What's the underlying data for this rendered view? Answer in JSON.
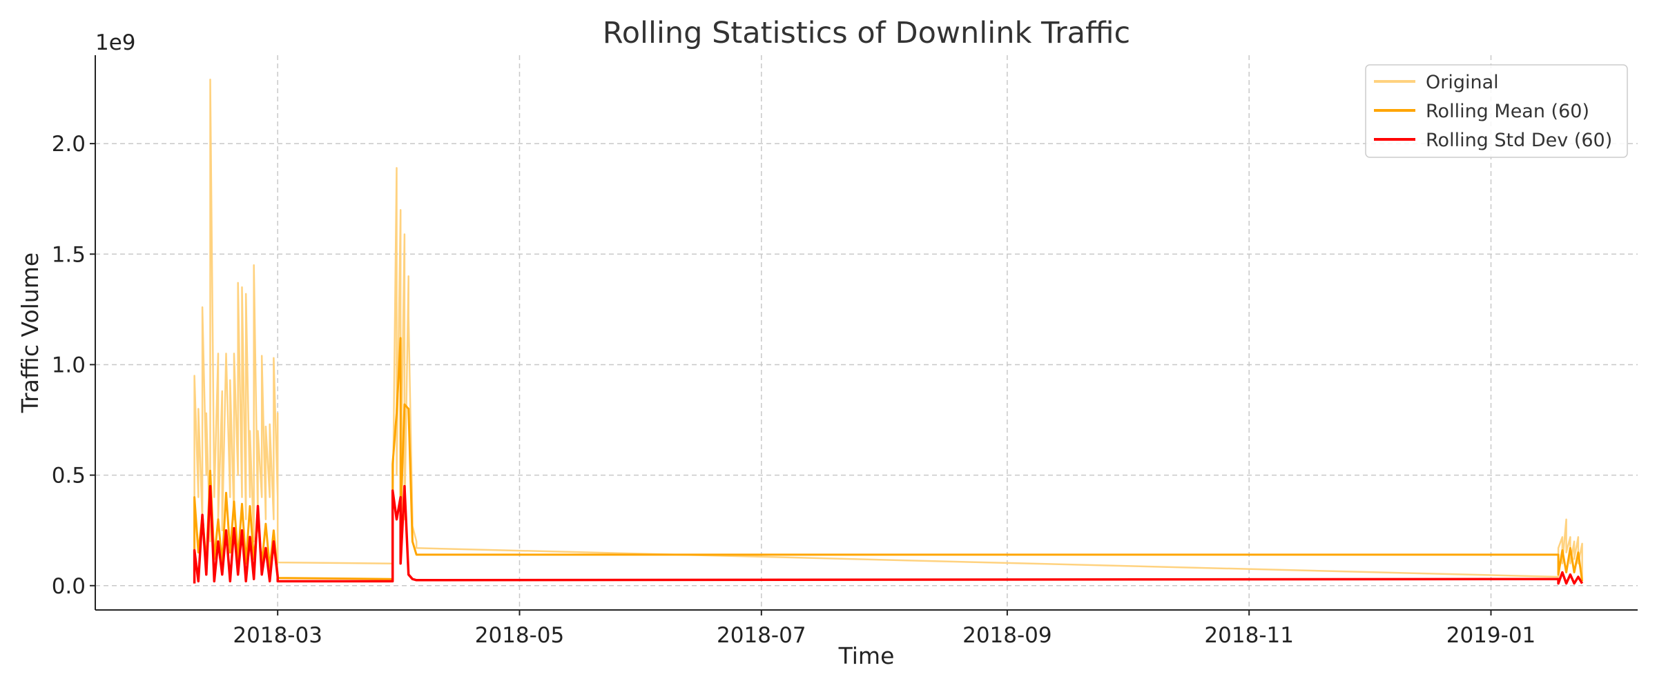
{
  "chart_data": {
    "type": "line",
    "title": "Rolling Statistics of Downlink Traffic",
    "xlabel": "Time",
    "ylabel": "Traffic Volume",
    "y_multiplier_label": "1e9",
    "xlim": [
      "2018-01-14",
      "2019-02-07"
    ],
    "ylim": [
      -0.11,
      2.4
    ],
    "x_ticks": [
      {
        "date": "2018-03-01",
        "label": "2018-03"
      },
      {
        "date": "2018-05-01",
        "label": "2018-05"
      },
      {
        "date": "2018-07-01",
        "label": "2018-07"
      },
      {
        "date": "2018-09-01",
        "label": "2018-09"
      },
      {
        "date": "2018-11-01",
        "label": "2018-11"
      },
      {
        "date": "2019-01-01",
        "label": "2019-01"
      }
    ],
    "y_ticks": [
      {
        "value": 0.0,
        "label": "0.0"
      },
      {
        "value": 0.5,
        "label": "0.5"
      },
      {
        "value": 1.0,
        "label": "1.0"
      },
      {
        "value": 1.5,
        "label": "1.5"
      },
      {
        "value": 2.0,
        "label": "2.0"
      }
    ],
    "grid": true,
    "legend_position": "top-right",
    "series": [
      {
        "name": "Original",
        "color": "#ffd27f",
        "points": [
          [
            "2018-02-08",
            0.2
          ],
          [
            "2018-02-08",
            0.95
          ],
          [
            "2018-02-09",
            0.4
          ],
          [
            "2018-02-09",
            0.8
          ],
          [
            "2018-02-10",
            0.3
          ],
          [
            "2018-02-10",
            1.26
          ],
          [
            "2018-02-11",
            0.5
          ],
          [
            "2018-02-11",
            0.78
          ],
          [
            "2018-02-12",
            0.2
          ],
          [
            "2018-02-12",
            2.29
          ],
          [
            "2018-02-13",
            0.4
          ],
          [
            "2018-02-14",
            1.05
          ],
          [
            "2018-02-14",
            0.3
          ],
          [
            "2018-02-15",
            0.88
          ],
          [
            "2018-02-15",
            0.25
          ],
          [
            "2018-02-16",
            1.05
          ],
          [
            "2018-02-17",
            0.4
          ],
          [
            "2018-02-17",
            0.93
          ],
          [
            "2018-02-18",
            0.3
          ],
          [
            "2018-02-18",
            1.05
          ],
          [
            "2018-02-19",
            0.5
          ],
          [
            "2018-02-19",
            1.37
          ],
          [
            "2018-02-20",
            0.4
          ],
          [
            "2018-02-20",
            1.35
          ],
          [
            "2018-02-21",
            0.3
          ],
          [
            "2018-02-21",
            1.32
          ],
          [
            "2018-02-22",
            0.4
          ],
          [
            "2018-02-22",
            0.7
          ],
          [
            "2018-02-23",
            0.2
          ],
          [
            "2018-02-23",
            1.45
          ],
          [
            "2018-02-24",
            0.3
          ],
          [
            "2018-02-24",
            0.7
          ],
          [
            "2018-02-25",
            0.4
          ],
          [
            "2018-02-25",
            1.04
          ],
          [
            "2018-02-26",
            0.3
          ],
          [
            "2018-02-26",
            0.72
          ],
          [
            "2018-02-27",
            0.4
          ],
          [
            "2018-02-27",
            0.73
          ],
          [
            "2018-02-28",
            0.3
          ],
          [
            "2018-02-28",
            1.03
          ],
          [
            "2018-03-01",
            0.4
          ],
          [
            "2018-03-01",
            0.78
          ],
          [
            "2018-03-01",
            0.105
          ],
          [
            "2018-03-30",
            0.1
          ],
          [
            "2018-03-30",
            0.3
          ],
          [
            "2018-03-31",
            1.89
          ],
          [
            "2018-03-31",
            0.5
          ],
          [
            "2018-04-01",
            1.7
          ],
          [
            "2018-04-01",
            0.4
          ],
          [
            "2018-04-02",
            1.59
          ],
          [
            "2018-04-02",
            0.3
          ],
          [
            "2018-04-03",
            1.4
          ],
          [
            "2018-04-03",
            1.22
          ],
          [
            "2018-04-04",
            0.3
          ],
          [
            "2018-04-04",
            0.27
          ],
          [
            "2018-04-05",
            0.2
          ],
          [
            "2018-04-05",
            0.17
          ],
          [
            "2019-01-18",
            0.04
          ],
          [
            "2019-01-18",
            0.17
          ],
          [
            "2019-01-19",
            0.22
          ],
          [
            "2019-01-19",
            0.1
          ],
          [
            "2019-01-20",
            0.3
          ],
          [
            "2019-01-20",
            0.15
          ],
          [
            "2019-01-21",
            0.22
          ],
          [
            "2019-01-21",
            0.1
          ],
          [
            "2019-01-22",
            0.2
          ],
          [
            "2019-01-22",
            0.12
          ],
          [
            "2019-01-23",
            0.22
          ],
          [
            "2019-01-23",
            0.1
          ],
          [
            "2019-01-24",
            0.19
          ],
          [
            "2019-01-24",
            0.03
          ]
        ]
      },
      {
        "name": "Rolling Mean (60)",
        "color": "#ffa500",
        "points": [
          [
            "2018-02-08",
            0.05
          ],
          [
            "2018-02-08",
            0.4
          ],
          [
            "2018-02-09",
            0.15
          ],
          [
            "2018-02-10",
            0.32
          ],
          [
            "2018-02-11",
            0.1
          ],
          [
            "2018-02-12",
            0.52
          ],
          [
            "2018-02-13",
            0.12
          ],
          [
            "2018-02-14",
            0.3
          ],
          [
            "2018-02-15",
            0.1
          ],
          [
            "2018-02-16",
            0.42
          ],
          [
            "2018-02-17",
            0.15
          ],
          [
            "2018-02-18",
            0.38
          ],
          [
            "2018-02-19",
            0.12
          ],
          [
            "2018-02-20",
            0.37
          ],
          [
            "2018-02-21",
            0.1
          ],
          [
            "2018-02-22",
            0.36
          ],
          [
            "2018-02-23",
            0.12
          ],
          [
            "2018-02-24",
            0.3
          ],
          [
            "2018-02-25",
            0.1
          ],
          [
            "2018-02-26",
            0.28
          ],
          [
            "2018-02-27",
            0.08
          ],
          [
            "2018-02-28",
            0.25
          ],
          [
            "2018-03-01",
            0.05
          ],
          [
            "2018-03-01",
            0.035
          ],
          [
            "2018-03-30",
            0.03
          ],
          [
            "2018-03-30",
            0.55
          ],
          [
            "2018-03-31",
            0.78
          ],
          [
            "2018-04-01",
            1.12
          ],
          [
            "2018-04-01",
            0.3
          ],
          [
            "2018-04-02",
            0.82
          ],
          [
            "2018-04-03",
            0.8
          ],
          [
            "2018-04-04",
            0.2
          ],
          [
            "2018-04-05",
            0.14
          ],
          [
            "2019-01-18",
            0.14
          ],
          [
            "2019-01-18",
            0.05
          ],
          [
            "2019-01-19",
            0.16
          ],
          [
            "2019-01-20",
            0.06
          ],
          [
            "2019-01-21",
            0.17
          ],
          [
            "2019-01-22",
            0.06
          ],
          [
            "2019-01-23",
            0.15
          ],
          [
            "2019-01-24",
            0.02
          ]
        ]
      },
      {
        "name": "Rolling Std Dev (60)",
        "color": "#ff0000",
        "points": [
          [
            "2018-02-08",
            0.01
          ],
          [
            "2018-02-08",
            0.16
          ],
          [
            "2018-02-09",
            0.02
          ],
          [
            "2018-02-10",
            0.32
          ],
          [
            "2018-02-11",
            0.05
          ],
          [
            "2018-02-12",
            0.45
          ],
          [
            "2018-02-13",
            0.02
          ],
          [
            "2018-02-14",
            0.2
          ],
          [
            "2018-02-15",
            0.05
          ],
          [
            "2018-02-16",
            0.25
          ],
          [
            "2018-02-17",
            0.02
          ],
          [
            "2018-02-18",
            0.26
          ],
          [
            "2018-02-19",
            0.05
          ],
          [
            "2018-02-20",
            0.25
          ],
          [
            "2018-02-21",
            0.02
          ],
          [
            "2018-02-22",
            0.22
          ],
          [
            "2018-02-23",
            0.03
          ],
          [
            "2018-02-24",
            0.36
          ],
          [
            "2018-02-25",
            0.05
          ],
          [
            "2018-02-26",
            0.17
          ],
          [
            "2018-02-27",
            0.02
          ],
          [
            "2018-02-28",
            0.2
          ],
          [
            "2018-03-01",
            0.04
          ],
          [
            "2018-03-01",
            0.02
          ],
          [
            "2018-03-30",
            0.02
          ],
          [
            "2018-03-30",
            0.43
          ],
          [
            "2018-03-31",
            0.3
          ],
          [
            "2018-04-01",
            0.4
          ],
          [
            "2018-04-01",
            0.1
          ],
          [
            "2018-04-02",
            0.45
          ],
          [
            "2018-04-03",
            0.05
          ],
          [
            "2018-04-04",
            0.03
          ],
          [
            "2018-04-05",
            0.025
          ],
          [
            "2019-01-18",
            0.03
          ],
          [
            "2019-01-18",
            0.01
          ],
          [
            "2019-01-19",
            0.06
          ],
          [
            "2019-01-20",
            0.01
          ],
          [
            "2019-01-21",
            0.05
          ],
          [
            "2019-01-22",
            0.01
          ],
          [
            "2019-01-23",
            0.04
          ],
          [
            "2019-01-24",
            0.01
          ]
        ]
      }
    ]
  }
}
